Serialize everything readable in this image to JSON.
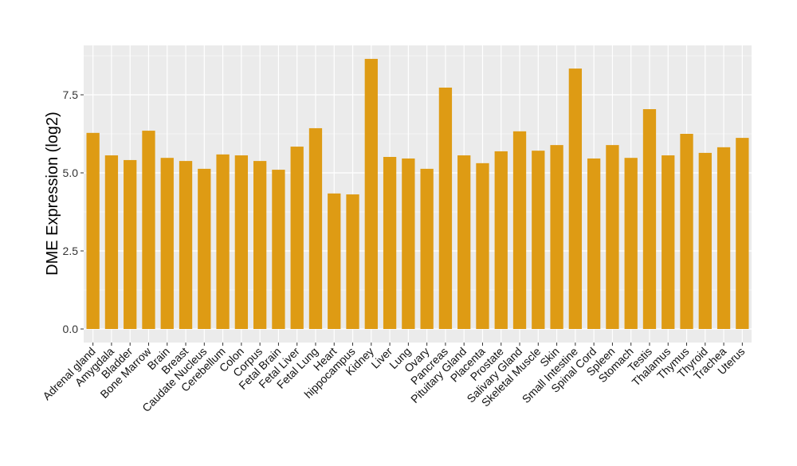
{
  "chart_data": {
    "type": "bar",
    "title": "",
    "xlabel": "",
    "ylabel": "DME Expression (log2)",
    "ylim": [
      -0.45,
      9.2
    ],
    "yticks": [
      "0.0",
      "2.5",
      "5.0",
      "7.5"
    ],
    "ytick_values": [
      0,
      2.5,
      5,
      7.5
    ],
    "grid": true,
    "bar_color": "#DE9B14",
    "categories": [
      "Adrenal gland",
      "Amygdala",
      "Bladder",
      "Bone Marrow",
      "Brain",
      "Breast",
      "Caudate Nucleus",
      "Cerebellum",
      "Colon",
      "Corpus",
      "Fetal Brain",
      "Fetal Liver",
      "Fetal Lung",
      "Heart",
      "hippocampus",
      "Kidney",
      "Liver",
      "Lung",
      "Ovary",
      "Pancreas",
      "Pituitary Gland",
      "Placenta",
      "Prostate",
      "Salivary Gland",
      "Skeletal Muscle",
      "Skin",
      "Small Intestine",
      "Spinal Cord",
      "Spleen",
      "Stomach",
      "Testis",
      "Thalamus",
      "Thymus",
      "Thyroid",
      "Trachea",
      "Uterus"
    ],
    "values": [
      6.28,
      5.56,
      5.41,
      6.35,
      5.48,
      5.38,
      5.13,
      5.59,
      5.56,
      5.38,
      5.1,
      5.84,
      6.43,
      4.34,
      4.31,
      8.65,
      5.51,
      5.46,
      5.13,
      7.73,
      5.56,
      5.31,
      5.69,
      6.33,
      5.71,
      5.89,
      8.34,
      5.46,
      5.89,
      5.48,
      7.04,
      5.56,
      6.25,
      5.64,
      5.82,
      6.12
    ]
  }
}
